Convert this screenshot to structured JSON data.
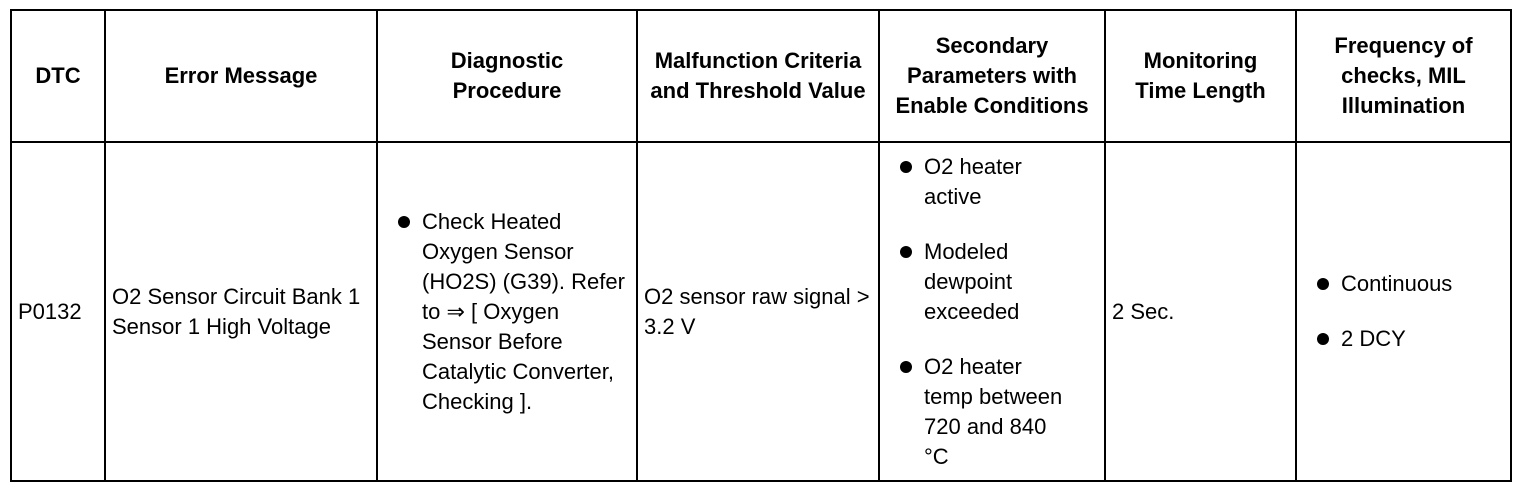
{
  "headers": {
    "dtc": "DTC",
    "error_message": "Error Message",
    "diagnostic_procedure": "Diagnostic Procedure",
    "malfunction_criteria": "Malfunction Criteria and Threshold Value",
    "secondary_parameters": "Secondary Parameters with Enable Conditions",
    "monitoring_time": "Monitoring Time Length",
    "frequency": "Frequency of checks, MIL Illumination"
  },
  "row": {
    "dtc": "P0132",
    "error_message": "O2 Sensor Circuit Bank 1 Sensor 1 High Voltage",
    "diagnostic_procedure": [
      "Check Heated Oxygen Sensor (HO2S) (G39). Refer to ⇒ [ Oxygen Sensor Before Catalytic Converter, Checking ]."
    ],
    "malfunction_criteria": "O2 sensor raw signal > 3.2 V",
    "secondary_parameters": [
      "O2 heater active",
      "Modeled dewpoint exceeded",
      "O2 heater temp between 720 and 840 °C"
    ],
    "monitoring_time": "2 Sec.",
    "frequency": [
      "Continuous",
      "2 DCY"
    ]
  }
}
